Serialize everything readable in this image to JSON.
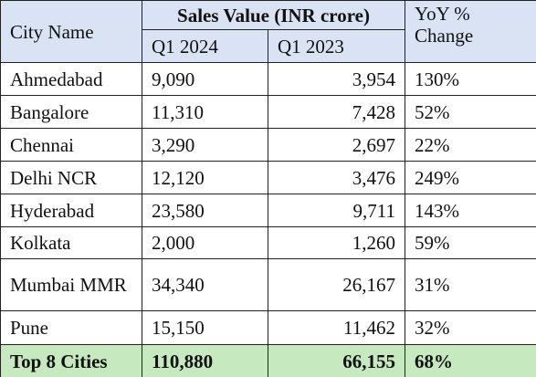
{
  "table": {
    "header": {
      "city": "City Name",
      "sales": "Sales Value (INR crore)",
      "q1_2024": "Q1 2024",
      "q1_2023": "Q1 2023",
      "yoy": "YoY % Change"
    },
    "rows": [
      [
        "Ahmedabad",
        "9,090",
        "3,954",
        "130%"
      ],
      [
        "Bangalore",
        "11,310",
        "7,428",
        "52%"
      ],
      [
        "Chennai",
        "3,290",
        "2,697",
        "22%"
      ],
      [
        "Delhi NCR",
        "12,120",
        "3,476",
        "249%"
      ],
      [
        "Hyderabad",
        "23,580",
        "9,711",
        "143%"
      ],
      [
        "Kolkata",
        "2,000",
        "1,260",
        "59%"
      ],
      [
        "Mumbai MMR",
        "34,340",
        "26,167",
        "31%"
      ],
      [
        "Pune",
        "15,150",
        "11,462",
        "32%"
      ]
    ],
    "total": [
      "Top 8 Cities",
      "110,880",
      "66,155",
      "68%"
    ]
  }
}
